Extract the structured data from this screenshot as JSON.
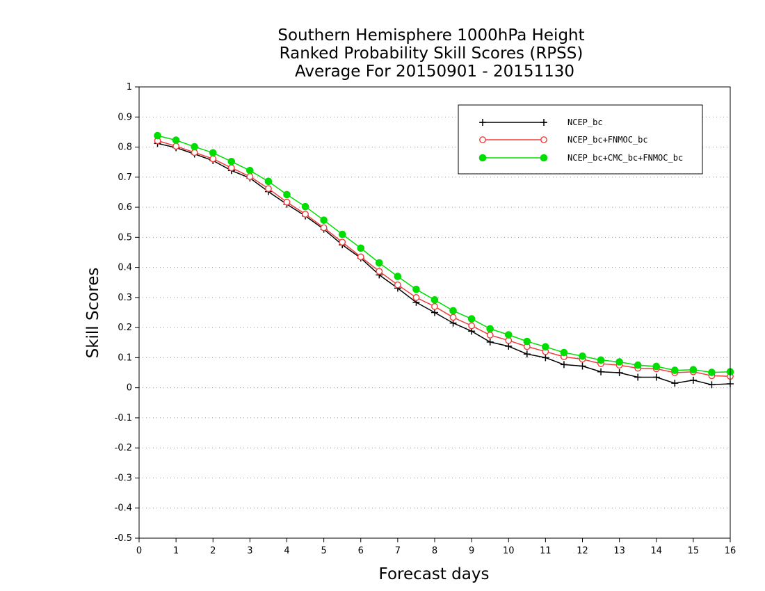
{
  "chart_data": {
    "type": "line",
    "title": [
      "Southern Hemisphere 1000hPa Height",
      "Ranked Probability Skill Scores (RPSS)",
      "Average For 20150901 - 20151130"
    ],
    "xlabel": "Forecast days",
    "ylabel": "Skill Scores",
    "xlim": [
      0,
      16
    ],
    "ylim": [
      -0.5,
      1
    ],
    "xticks": [
      "0",
      "1",
      "2",
      "3",
      "4",
      "5",
      "6",
      "7",
      "8",
      "9",
      "10",
      "11",
      "12",
      "13",
      "14",
      "15",
      "16"
    ],
    "yticks": [
      "-0.5",
      "-0.4",
      "-0.3",
      "-0.2",
      "-0.1",
      "0",
      "0.1",
      "0.2",
      "0.3",
      "0.4",
      "0.5",
      "0.6",
      "0.7",
      "0.8",
      "0.9",
      "1"
    ],
    "grid": "horizontal dotted",
    "legend_position": "top-right",
    "x": [
      0.5,
      1,
      1.5,
      2,
      2.5,
      3,
      3.5,
      4,
      4.5,
      5,
      5.5,
      6,
      6.5,
      7,
      7.5,
      8,
      8.5,
      9,
      9.5,
      10,
      10.5,
      11,
      11.5,
      12,
      12.5,
      13,
      13.5,
      14,
      14.5,
      15,
      15.5,
      16
    ],
    "series": [
      {
        "name": "NCEP_bc",
        "color": "#000000",
        "marker": "plus",
        "values": [
          0.812,
          0.798,
          0.777,
          0.755,
          0.722,
          0.697,
          0.652,
          0.61,
          0.571,
          0.527,
          0.475,
          0.431,
          0.375,
          0.331,
          0.284,
          0.25,
          0.215,
          0.188,
          0.152,
          0.138,
          0.112,
          0.1,
          0.077,
          0.072,
          0.053,
          0.05,
          0.035,
          0.035,
          0.015,
          0.025,
          0.01,
          0.013
        ]
      },
      {
        "name": "NCEP_bc+FNMOC_bc",
        "color": "#f03c3c",
        "marker": "circle-open",
        "values": [
          0.821,
          0.803,
          0.782,
          0.761,
          0.731,
          0.702,
          0.662,
          0.617,
          0.577,
          0.532,
          0.484,
          0.435,
          0.387,
          0.342,
          0.3,
          0.27,
          0.234,
          0.206,
          0.175,
          0.157,
          0.137,
          0.12,
          0.103,
          0.095,
          0.08,
          0.075,
          0.065,
          0.063,
          0.05,
          0.053,
          0.04,
          0.038
        ]
      },
      {
        "name": "NCEP_bc+CMC_bc+FNMOC_bc",
        "color": "#00dd00",
        "marker": "circle-filled",
        "values": [
          0.838,
          0.823,
          0.801,
          0.781,
          0.752,
          0.722,
          0.686,
          0.642,
          0.602,
          0.557,
          0.51,
          0.464,
          0.415,
          0.37,
          0.327,
          0.292,
          0.256,
          0.229,
          0.196,
          0.176,
          0.154,
          0.136,
          0.117,
          0.105,
          0.092,
          0.086,
          0.075,
          0.071,
          0.058,
          0.06,
          0.051,
          0.053
        ]
      }
    ]
  }
}
